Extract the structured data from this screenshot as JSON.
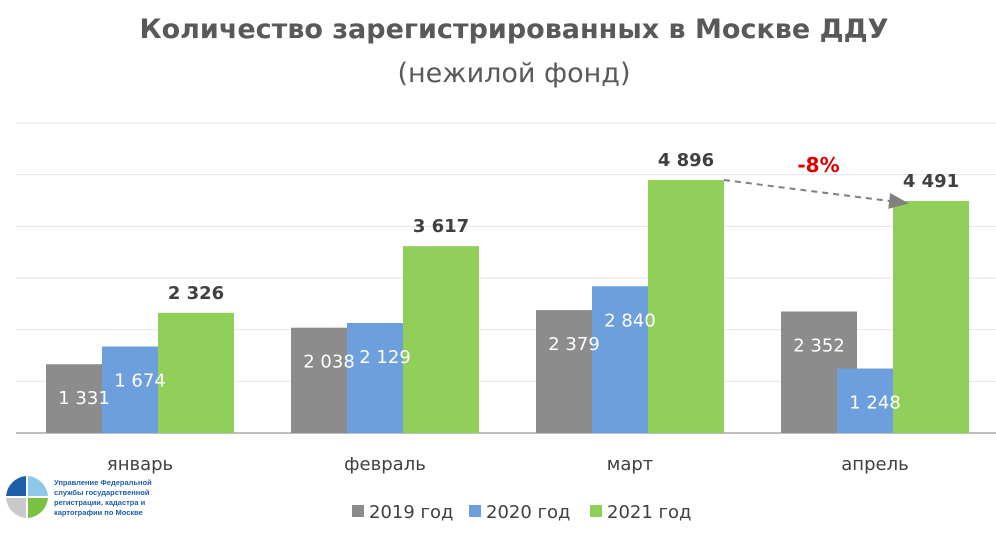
{
  "chart_data": {
    "type": "bar",
    "title": "Количество зарегистрированных в Москве ДДУ",
    "subtitle": "(нежилой фонд)",
    "categories": [
      "январь",
      "февраль",
      "март",
      "апрель"
    ],
    "series": [
      {
        "name": "2019 год",
        "color": "#8c8c8c",
        "values": [
          1331,
          2038,
          2379,
          2352
        ],
        "labels": [
          "1 331",
          "2 038",
          "2 379",
          "2 352"
        ]
      },
      {
        "name": "2020 год",
        "color": "#6d9fdc",
        "values": [
          1674,
          2129,
          2840,
          1248
        ],
        "labels": [
          "1 674",
          "2 129",
          "2 840",
          "1 248"
        ]
      },
      {
        "name": "2021 год",
        "color": "#92cf5a",
        "values": [
          2326,
          3617,
          4896,
          4491
        ],
        "labels": [
          "2 326",
          "3 617",
          "4 896",
          "4 491"
        ]
      }
    ],
    "ylim": [
      0,
      6000
    ],
    "grid": true,
    "legend": "bottom",
    "annotation": {
      "text": "-8%",
      "color": "#e00000",
      "from": {
        "category": "март",
        "series": "2021 год"
      },
      "to": {
        "category": "апрель",
        "series": "2021 год"
      }
    }
  },
  "logo": {
    "text": "Управление Федеральной службы государственной регистрации, кадастра и картографии по Москве"
  }
}
